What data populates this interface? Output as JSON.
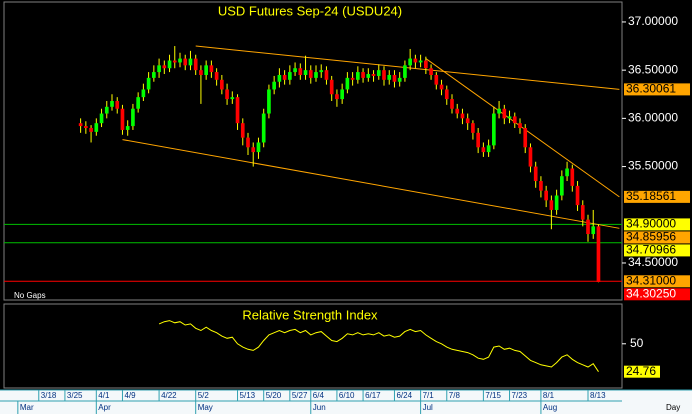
{
  "chart_data": [
    {
      "type": "candlestick",
      "title": "USD Futures Sep-24 (USDU24)",
      "note": "No Gaps",
      "x_label": "Day",
      "categories": [
        null,
        null,
        null,
        null,
        null,
        "3/18",
        null,
        null,
        null,
        null,
        "3/25",
        null,
        null,
        null,
        null,
        null,
        "4/1",
        null,
        null,
        null,
        null,
        "4/9",
        null,
        null,
        null,
        null,
        null,
        null,
        "4/22",
        null,
        null,
        null,
        null,
        null,
        null,
        "5/2",
        null,
        null,
        null,
        null,
        null,
        null,
        null,
        "5/13",
        null,
        null,
        null,
        null,
        "5/20",
        null,
        null,
        null,
        null,
        "5/27",
        null,
        null,
        null,
        "6/4",
        null,
        null,
        null,
        null,
        "6/10",
        null,
        null,
        null,
        null,
        "6/17",
        null,
        null,
        null,
        null,
        null,
        "6/24",
        null,
        null,
        null,
        null,
        "7/1",
        null,
        null,
        null,
        null,
        "7/8",
        null,
        null,
        null,
        null,
        null,
        null,
        "7/15",
        null,
        null,
        null,
        null,
        "7/23",
        null,
        null,
        null,
        null,
        null,
        "8/1",
        null,
        null,
        null,
        null,
        null,
        null,
        null,
        null,
        "8/13",
        null,
        null,
        null,
        null,
        null,
        null
      ],
      "months": [
        null,
        "Mar",
        null,
        null,
        null,
        null,
        null,
        null,
        null,
        null,
        null,
        null,
        null,
        null,
        null,
        null,
        "Apr",
        null,
        null,
        null,
        null,
        null,
        null,
        null,
        null,
        null,
        null,
        null,
        null,
        null,
        null,
        null,
        null,
        null,
        null,
        "May",
        null,
        null,
        null,
        null,
        null,
        null,
        null,
        null,
        null,
        null,
        null,
        null,
        null,
        null,
        null,
        null,
        null,
        null,
        null,
        null,
        null,
        "Jun",
        null,
        null,
        null,
        null,
        null,
        null,
        null,
        null,
        null,
        null,
        null,
        null,
        null,
        null,
        null,
        null,
        null,
        null,
        null,
        null,
        "Jul",
        null,
        null,
        null,
        null,
        null,
        null,
        null,
        null,
        null,
        null,
        null,
        null,
        null,
        null,
        null,
        null,
        null,
        null,
        null,
        null,
        null,
        null,
        "Aug",
        null,
        null,
        null,
        null,
        null,
        null,
        null,
        null,
        null,
        null,
        null,
        null,
        null,
        null,
        null
      ],
      "open": [
        null,
        null,
        null,
        null,
        null,
        null,
        null,
        null,
        null,
        null,
        null,
        null,
        null,
        35.95,
        35.92,
        35.9,
        35.86,
        35.95,
        36.05,
        36.12,
        36.18,
        36.1,
        35.88,
        35.92,
        36.1,
        36.22,
        36.3,
        36.42,
        36.48,
        36.55,
        36.52,
        36.6,
        36.58,
        36.62,
        36.55,
        36.62,
        36.5,
        36.45,
        36.55,
        36.48,
        36.4,
        36.3,
        36.2,
        36.22,
        35.95,
        35.8,
        35.7,
        35.65,
        35.75,
        36.05,
        36.3,
        36.38,
        36.45,
        36.4,
        36.48,
        36.52,
        36.45,
        36.5,
        36.42,
        36.48,
        36.5,
        36.4,
        36.25,
        36.2,
        36.3,
        36.42,
        36.4,
        36.48,
        36.42,
        36.46,
        36.44,
        36.5,
        36.4,
        36.45,
        36.38,
        36.42,
        36.55,
        36.62,
        36.58,
        36.6,
        36.52,
        36.45,
        36.35,
        36.3,
        36.2,
        36.1,
        36.05,
        36.0,
        35.95,
        35.85,
        35.7,
        35.65,
        35.72,
        36.05,
        36.1,
        36.0,
        36.02,
        35.95,
        35.9,
        35.7,
        35.5,
        35.35,
        35.25,
        35.15,
        35.05,
        35.2,
        35.4,
        35.48,
        35.3,
        35.1,
        34.95,
        34.8,
        34.88,
        null,
        null,
        null,
        null
      ],
      "high": [
        null,
        null,
        null,
        null,
        null,
        null,
        null,
        null,
        null,
        null,
        null,
        null,
        null,
        36.0,
        35.97,
        35.93,
        36.0,
        36.1,
        36.18,
        36.25,
        36.22,
        36.14,
        35.98,
        36.15,
        36.27,
        36.36,
        36.48,
        36.55,
        36.62,
        36.6,
        36.66,
        36.75,
        36.68,
        36.66,
        36.7,
        36.66,
        36.55,
        36.6,
        36.6,
        36.52,
        36.45,
        36.36,
        36.28,
        36.25,
        36.0,
        35.85,
        35.75,
        35.8,
        36.1,
        36.35,
        36.44,
        36.52,
        36.5,
        36.55,
        36.58,
        36.57,
        36.65,
        36.55,
        36.55,
        36.56,
        36.54,
        36.44,
        36.3,
        36.36,
        36.48,
        36.48,
        36.54,
        36.52,
        36.52,
        36.5,
        36.56,
        36.54,
        36.5,
        36.5,
        36.48,
        36.6,
        36.72,
        36.66,
        36.66,
        36.64,
        36.56,
        36.48,
        36.4,
        36.34,
        36.25,
        36.15,
        36.1,
        36.05,
        35.98,
        35.9,
        35.75,
        35.78,
        36.12,
        36.18,
        36.14,
        36.08,
        36.06,
        36.0,
        35.94,
        35.74,
        35.55,
        35.4,
        35.3,
        35.2,
        35.26,
        35.46,
        35.55,
        35.52,
        35.35,
        35.15,
        35.0,
        35.05,
        34.9,
        null,
        null,
        null,
        null
      ],
      "low": [
        null,
        null,
        null,
        null,
        null,
        null,
        null,
        null,
        null,
        null,
        null,
        null,
        null,
        35.85,
        35.84,
        35.75,
        35.82,
        35.91,
        36.0,
        36.08,
        36.05,
        35.83,
        35.82,
        35.88,
        36.06,
        36.18,
        36.26,
        36.38,
        36.42,
        36.46,
        36.48,
        36.52,
        36.53,
        36.5,
        36.5,
        36.45,
        36.15,
        36.4,
        36.42,
        36.34,
        36.25,
        36.14,
        36.15,
        35.88,
        35.72,
        35.62,
        35.5,
        35.58,
        35.7,
        36.0,
        36.25,
        36.32,
        36.35,
        36.35,
        36.44,
        36.4,
        36.4,
        36.36,
        36.38,
        36.42,
        36.35,
        36.18,
        36.12,
        36.15,
        36.26,
        36.34,
        36.36,
        36.37,
        36.38,
        36.38,
        36.4,
        36.34,
        36.35,
        36.32,
        36.33,
        36.38,
        36.5,
        36.52,
        36.53,
        36.46,
        36.4,
        36.3,
        36.24,
        36.14,
        36.05,
        36.0,
        35.94,
        35.88,
        35.78,
        35.64,
        35.6,
        35.6,
        35.68,
        36.0,
        35.94,
        35.95,
        35.9,
        35.84,
        35.64,
        35.44,
        35.28,
        35.18,
        35.08,
        34.85,
        35.0,
        35.15,
        35.35,
        35.24,
        35.04,
        34.88,
        34.72,
        34.75,
        34.3,
        null,
        null,
        null,
        null
      ],
      "close": [
        null,
        null,
        null,
        null,
        null,
        null,
        null,
        null,
        null,
        null,
        null,
        null,
        null,
        35.92,
        35.9,
        35.86,
        35.95,
        36.05,
        36.12,
        36.18,
        36.1,
        35.88,
        35.92,
        36.1,
        36.22,
        36.3,
        36.42,
        36.48,
        36.55,
        36.52,
        36.6,
        36.58,
        36.62,
        36.55,
        36.62,
        36.5,
        36.45,
        36.55,
        36.48,
        36.4,
        36.3,
        36.2,
        36.22,
        35.95,
        35.8,
        35.7,
        35.65,
        35.75,
        36.05,
        36.3,
        36.38,
        36.45,
        36.4,
        36.48,
        36.52,
        36.45,
        36.5,
        36.42,
        36.48,
        36.5,
        36.4,
        36.25,
        36.2,
        36.3,
        36.42,
        36.4,
        36.48,
        36.42,
        36.46,
        36.44,
        36.5,
        36.4,
        36.45,
        36.38,
        36.42,
        36.55,
        36.62,
        36.58,
        36.6,
        36.52,
        36.45,
        36.35,
        36.3,
        36.2,
        36.1,
        36.05,
        36.0,
        35.95,
        35.85,
        35.7,
        35.65,
        35.72,
        36.05,
        36.1,
        36.0,
        36.02,
        35.95,
        35.9,
        35.7,
        35.5,
        35.35,
        35.25,
        35.15,
        35.05,
        35.2,
        35.4,
        35.48,
        35.3,
        35.1,
        34.95,
        34.8,
        34.88,
        34.3025,
        null,
        null,
        null,
        null
      ],
      "up_color": "#00ff00",
      "down_color": "#ff0000",
      "wick_color": "#ffff00",
      "ylim": [
        34.116,
        37.207
      ],
      "yticks": [
        {
          "value": 37,
          "label": "37.00000"
        },
        {
          "value": 36.5,
          "label": "36.50000"
        },
        {
          "value": 36,
          "label": "36.00000"
        },
        {
          "value": 35.5,
          "label": "35.50000"
        },
        {
          "value": 34.5,
          "label": "34.50000"
        }
      ],
      "trendline_color": "#ffa500",
      "trendlines": [
        {
          "x": [
            35,
            116
          ],
          "values": [
            36.75,
            36.30061
          ]
        },
        {
          "x": [
            21,
            116
          ],
          "values": [
            35.78,
            34.85956
          ]
        },
        {
          "x": [
            79,
            116
          ],
          "values": [
            36.62,
            35.18561
          ]
        }
      ],
      "price_markers": [
        {
          "value": 36.30061,
          "label": "36.30061",
          "color": "#ffa500"
        },
        {
          "value": 35.18561,
          "label": "35.18561",
          "color": "#ffa500"
        },
        {
          "value": 34.9,
          "label": "34.90000",
          "color": "#ffff00",
          "line": "#00c000"
        },
        {
          "value": 34.85956,
          "label": "34.85956",
          "color": "#ffa500"
        },
        {
          "value": 34.70966,
          "label": "34.70966",
          "color": "#ffff00",
          "line": "#00c000"
        },
        {
          "value": 34.31,
          "label": "34.31000",
          "color": "#ffa500",
          "line": "#ff0000"
        },
        {
          "value": 34.3025,
          "label": "34.30250",
          "color": "#ff0000"
        }
      ]
    },
    {
      "type": "line",
      "title": "Relative Strength Index",
      "color": "#ffff00",
      "values": [
        null,
        null,
        null,
        null,
        null,
        null,
        null,
        null,
        null,
        null,
        null,
        null,
        null,
        null,
        null,
        null,
        null,
        null,
        null,
        null,
        null,
        null,
        null,
        null,
        null,
        null,
        null,
        null,
        68,
        70,
        71,
        69,
        70,
        67,
        68,
        64,
        62,
        65,
        62,
        60,
        57,
        55,
        56,
        50,
        47,
        45,
        44,
        47,
        53,
        58,
        60,
        62,
        60,
        62,
        63,
        60,
        62,
        58,
        60,
        61,
        57,
        53,
        52,
        55,
        59,
        58,
        60,
        58,
        59,
        58,
        60,
        57,
        58,
        56,
        57,
        61,
        63,
        61,
        62,
        58,
        55,
        52,
        50,
        47,
        45,
        44,
        43,
        42,
        40,
        37,
        36,
        38,
        47,
        48,
        45,
        46,
        44,
        43,
        39,
        35,
        33,
        31,
        30,
        29,
        33,
        38,
        40,
        36,
        33,
        31,
        29,
        32,
        24.76,
        null,
        null,
        null,
        null
      ],
      "end_label": "24.76",
      "ylim": [
        10,
        86
      ],
      "yticks": [
        50
      ]
    }
  ]
}
